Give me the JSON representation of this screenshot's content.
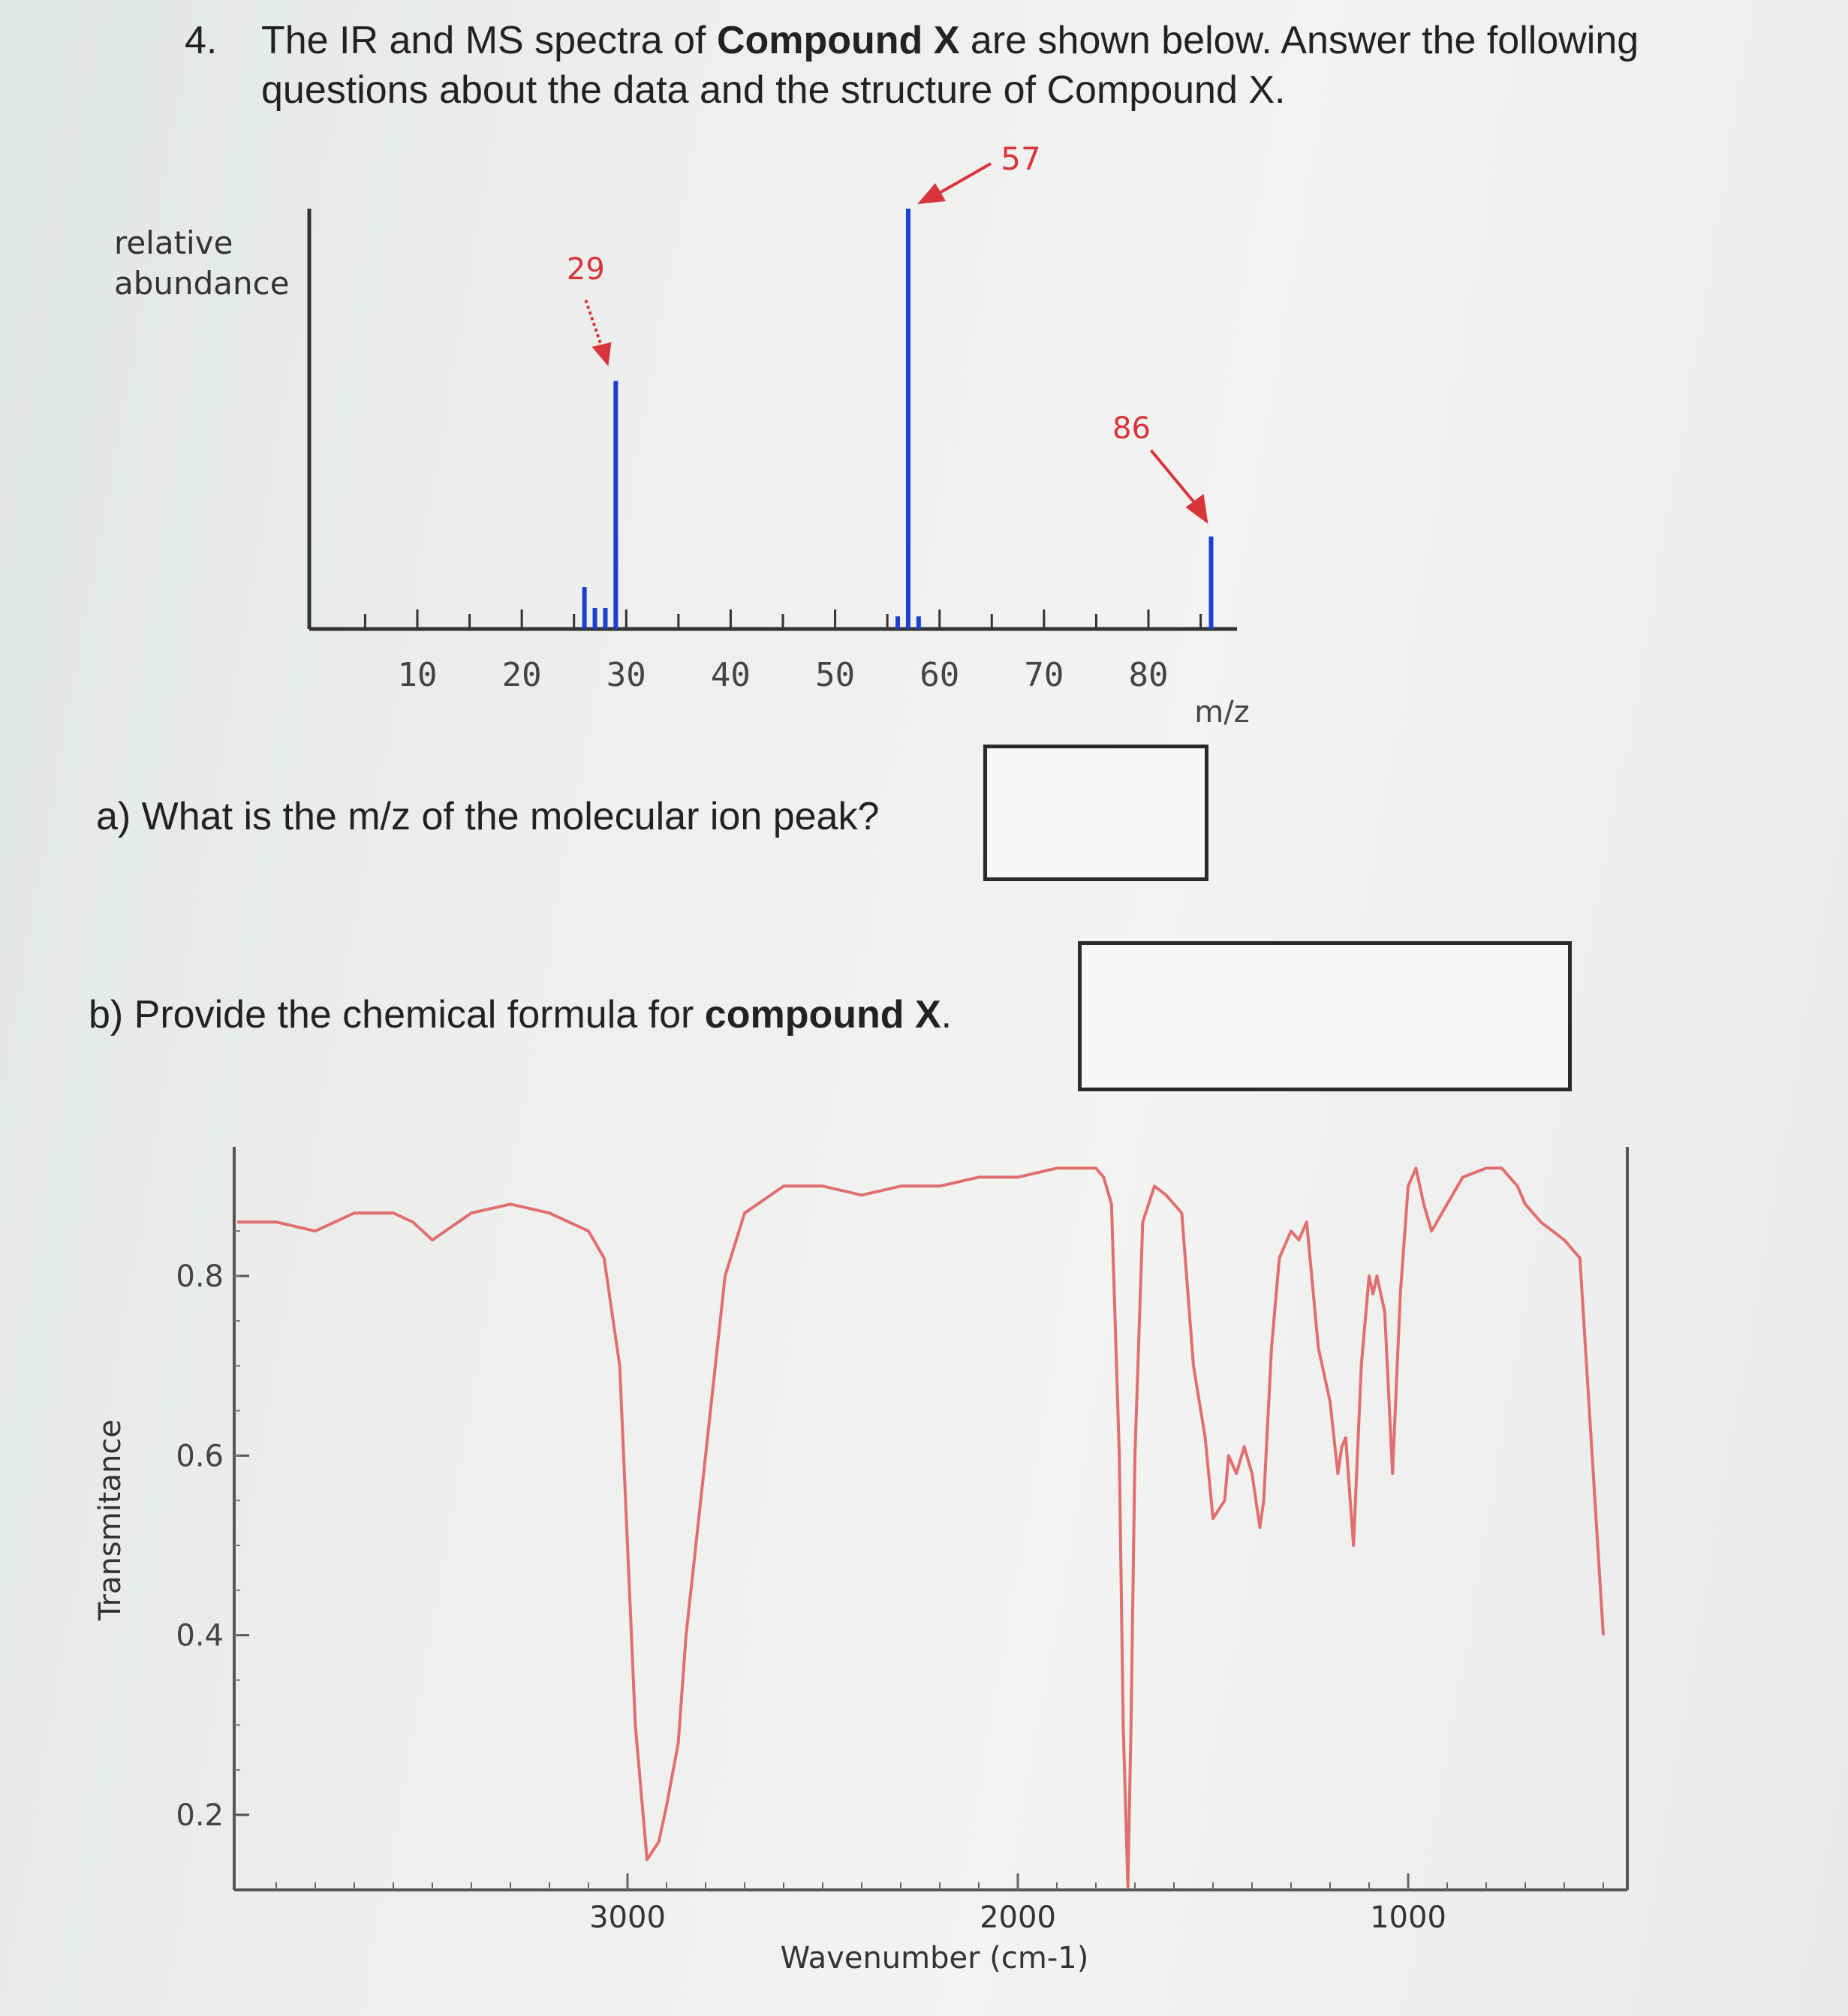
{
  "question": {
    "number": "4.",
    "line1_a": "The IR and MS spectra of ",
    "line1_bold": "Compound X",
    "line1_b": " are shown below. Answer the following",
    "line2": "questions about the data and the structure of Compound X."
  },
  "part_a": {
    "label": "a) What is the m/z of the molecular ion peak?"
  },
  "part_b": {
    "label_a": "b) Provide the chemical formula for ",
    "label_bold": "compound X",
    "label_b": "."
  },
  "colors": {
    "ms_peak": "#1f3fd1",
    "annotation": "#d8343c",
    "ir_line": "#e07070",
    "axis": "#333333"
  },
  "chart_data": [
    {
      "type": "bar",
      "ylabel_line1": "relative",
      "ylabel_line2": "abundance",
      "xlabel": "m/z",
      "xlim": [
        0,
        90
      ],
      "ylim": [
        0,
        100
      ],
      "xticks": [
        10,
        20,
        30,
        40,
        50,
        60,
        70,
        80
      ],
      "peaks": [
        {
          "mz": 26,
          "value": 10
        },
        {
          "mz": 27,
          "value": 5
        },
        {
          "mz": 28,
          "value": 5
        },
        {
          "mz": 29,
          "value": 59
        },
        {
          "mz": 56,
          "value": 3
        },
        {
          "mz": 57,
          "value": 100
        },
        {
          "mz": 58,
          "value": 3
        },
        {
          "mz": 86,
          "value": 22
        }
      ],
      "annotations": [
        {
          "mz": 29,
          "text": "29"
        },
        {
          "mz": 57,
          "text": "57"
        },
        {
          "mz": 86,
          "text": "86"
        }
      ]
    },
    {
      "type": "line",
      "ylabel": "Transmitance",
      "xlabel": "Wavenumber (cm-1)",
      "xlim": [
        4000,
        450
      ],
      "ylim": [
        0.1,
        0.95
      ],
      "xticks": [
        3000,
        2000,
        1000
      ],
      "yticks": [
        0.2,
        0.4,
        0.6,
        0.8
      ],
      "ytick_labels": [
        "0.2",
        "0.4",
        "0.6",
        "0.8"
      ],
      "x": [
        4000,
        3900,
        3800,
        3700,
        3600,
        3550,
        3500,
        3400,
        3300,
        3200,
        3100,
        3060,
        3020,
        3000,
        2980,
        2950,
        2920,
        2900,
        2870,
        2850,
        2800,
        2750,
        2700,
        2600,
        2500,
        2400,
        2300,
        2200,
        2100,
        2000,
        1900,
        1800,
        1780,
        1760,
        1740,
        1730,
        1718,
        1710,
        1700,
        1680,
        1650,
        1620,
        1600,
        1580,
        1550,
        1520,
        1500,
        1470,
        1460,
        1440,
        1420,
        1400,
        1380,
        1370,
        1350,
        1330,
        1300,
        1280,
        1260,
        1230,
        1200,
        1180,
        1170,
        1160,
        1140,
        1120,
        1100,
        1090,
        1080,
        1060,
        1040,
        1020,
        1000,
        980,
        960,
        940,
        900,
        860,
        800,
        760,
        720,
        700,
        660,
        600,
        560,
        500
      ],
      "y": [
        0.86,
        0.86,
        0.85,
        0.87,
        0.87,
        0.86,
        0.84,
        0.87,
        0.88,
        0.87,
        0.85,
        0.82,
        0.7,
        0.5,
        0.3,
        0.15,
        0.17,
        0.21,
        0.28,
        0.4,
        0.6,
        0.8,
        0.87,
        0.9,
        0.9,
        0.89,
        0.9,
        0.9,
        0.91,
        0.91,
        0.92,
        0.92,
        0.91,
        0.88,
        0.6,
        0.3,
        0.12,
        0.3,
        0.6,
        0.86,
        0.9,
        0.89,
        0.88,
        0.87,
        0.7,
        0.62,
        0.53,
        0.55,
        0.6,
        0.58,
        0.61,
        0.58,
        0.52,
        0.55,
        0.72,
        0.82,
        0.85,
        0.84,
        0.86,
        0.72,
        0.66,
        0.58,
        0.61,
        0.62,
        0.5,
        0.7,
        0.8,
        0.78,
        0.8,
        0.76,
        0.58,
        0.78,
        0.9,
        0.92,
        0.88,
        0.85,
        0.88,
        0.91,
        0.92,
        0.92,
        0.9,
        0.88,
        0.86,
        0.84,
        0.82,
        0.4
      ]
    }
  ]
}
